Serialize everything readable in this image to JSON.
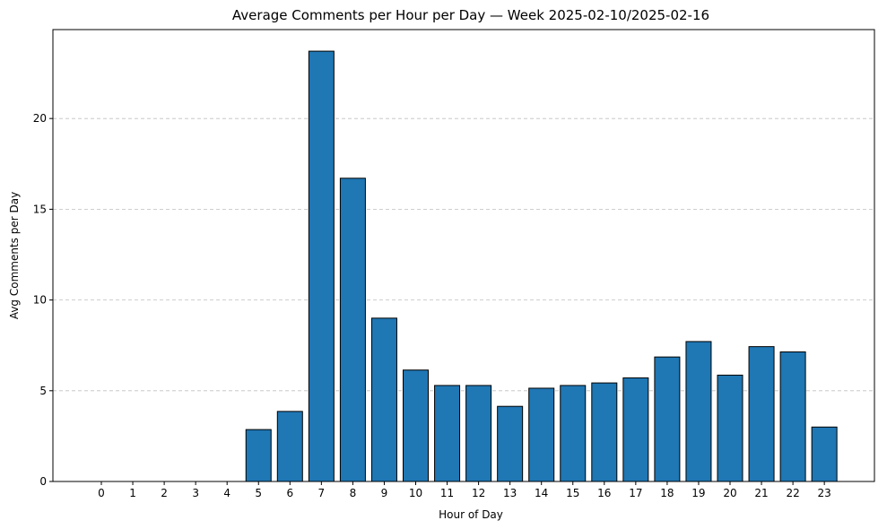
{
  "chart_data": {
    "type": "bar",
    "title": "Average Comments per Hour per Day — Week 2025-02-10/2025-02-16",
    "xlabel": "Hour of Day",
    "ylabel": "Avg Comments per Day",
    "categories": [
      "0",
      "1",
      "2",
      "3",
      "4",
      "5",
      "6",
      "7",
      "8",
      "9",
      "10",
      "11",
      "12",
      "13",
      "14",
      "15",
      "16",
      "17",
      "18",
      "19",
      "20",
      "21",
      "22",
      "23"
    ],
    "values": [
      0,
      0,
      0,
      0,
      0,
      2.86,
      3.86,
      23.71,
      16.71,
      9.0,
      6.14,
      5.29,
      5.29,
      4.14,
      5.14,
      5.29,
      5.43,
      5.71,
      6.86,
      7.71,
      5.86,
      7.43,
      7.14,
      3.0
    ],
    "ylim": [
      0,
      24.9
    ],
    "yticks": [
      "0",
      "5",
      "10",
      "15",
      "20"
    ],
    "grid": "y",
    "bar_color": "#1f77b4",
    "edge_color": "#000000",
    "grid_color": "#bfbfbf"
  }
}
